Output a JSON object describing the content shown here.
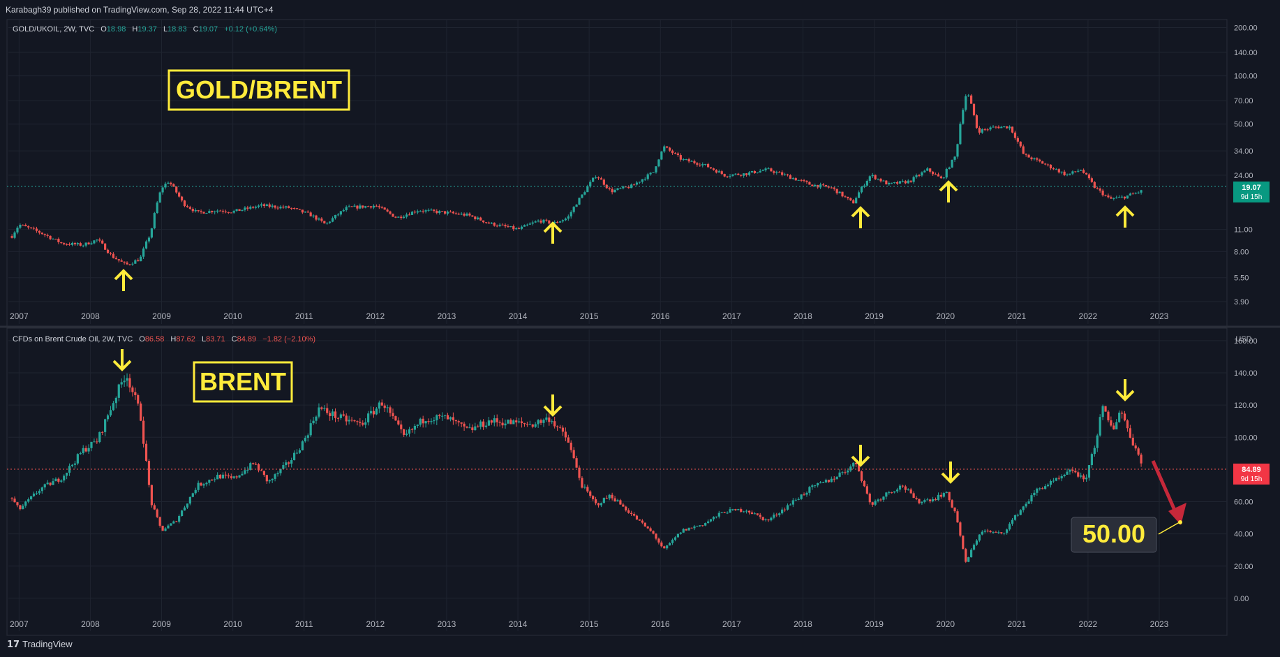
{
  "header": {
    "published": "Karabagh39 published on TradingView.com, Sep 28, 2022 11:44 UTC+4"
  },
  "footer": {
    "logo_glyph": "17",
    "brand": "TradingView"
  },
  "colors": {
    "up": "#26a69a",
    "down": "#ef5350",
    "background": "#131722",
    "grid": "#1f2430",
    "annotation": "#ffeb3b",
    "arrow_red": "#c6283a"
  },
  "top_panel": {
    "legend": {
      "symbol": "GOLD/UKOIL, 2W, TVC",
      "o_label": "O",
      "o": "18.98",
      "h_label": "H",
      "h": "19.37",
      "l_label": "L",
      "l": "18.83",
      "c_label": "C",
      "c": "19.07",
      "change": "+0.12 (+0.64%)"
    },
    "title_box": "GOLD/BRENT",
    "price_badge": {
      "value": "19.07",
      "countdown": "9d 15h"
    },
    "y_ticks": [
      "200.00",
      "140.00",
      "100.00",
      "70.00",
      "50.00",
      "34.00",
      "24.00",
      "11.00",
      "8.00",
      "5.50",
      "3.90"
    ],
    "x_ticks": [
      "2007",
      "2008",
      "2009",
      "2010",
      "2011",
      "2012",
      "2013",
      "2014",
      "2015",
      "2016",
      "2017",
      "2018",
      "2019",
      "2020",
      "2021",
      "2022",
      "2023"
    ],
    "arrows": [
      "up",
      "up",
      "up",
      "up",
      "up"
    ]
  },
  "bottom_panel": {
    "legend": {
      "symbol": "CFDs on Brent Crude Oil, 2W, TVC",
      "o_label": "O",
      "o": "86.58",
      "h_label": "H",
      "h": "87.62",
      "l_label": "L",
      "l": "83.71",
      "c_label": "C",
      "c": "84.89",
      "change": "−1.82 (−2.10%)"
    },
    "title_box": "BRENT",
    "currency": "USD",
    "price_badge": {
      "value": "84.89",
      "countdown": "9d 15h"
    },
    "target_label": "50.00",
    "y_ticks": [
      "160.00",
      "140.00",
      "120.00",
      "100.00",
      "60.00",
      "40.00",
      "20.00",
      "0.00"
    ],
    "x_ticks": [
      "2007",
      "2008",
      "2009",
      "2010",
      "2011",
      "2012",
      "2013",
      "2014",
      "2015",
      "2016",
      "2017",
      "2018",
      "2019",
      "2020",
      "2021",
      "2022",
      "2023"
    ],
    "arrows": [
      "down",
      "down",
      "down",
      "down",
      "down"
    ]
  },
  "chart_data": [
    {
      "type": "candlestick",
      "title": "GOLD/UKOIL, 2W, TVC",
      "scale": "log",
      "ylim": [
        3.6,
        220
      ],
      "last_close": 19.07,
      "points": [
        [
          2006.9,
          10.0
        ],
        [
          2007.0,
          11.8
        ],
        [
          2007.3,
          10.5
        ],
        [
          2007.6,
          9.0
        ],
        [
          2007.9,
          8.8
        ],
        [
          2008.1,
          9.5
        ],
        [
          2008.3,
          7.5
        ],
        [
          2008.5,
          6.6
        ],
        [
          2008.7,
          7.2
        ],
        [
          2008.85,
          10.5
        ],
        [
          2009.0,
          20.0
        ],
        [
          2009.1,
          22.0
        ],
        [
          2009.3,
          16.0
        ],
        [
          2009.5,
          14.0
        ],
        [
          2009.8,
          14.5
        ],
        [
          2010.0,
          14.2
        ],
        [
          2010.4,
          15.5
        ],
        [
          2010.8,
          15.0
        ],
        [
          2011.1,
          13.5
        ],
        [
          2011.3,
          11.8
        ],
        [
          2011.6,
          15.0
        ],
        [
          2012.0,
          15.5
        ],
        [
          2012.3,
          13.0
        ],
        [
          2012.6,
          14.5
        ],
        [
          2013.0,
          14.0
        ],
        [
          2013.3,
          13.5
        ],
        [
          2013.6,
          12.0
        ],
        [
          2014.0,
          11.0
        ],
        [
          2014.3,
          12.5
        ],
        [
          2014.5,
          12.0
        ],
        [
          2014.7,
          13.0
        ],
        [
          2014.9,
          18.0
        ],
        [
          2015.1,
          24.0
        ],
        [
          2015.3,
          19.0
        ],
        [
          2015.6,
          20.5
        ],
        [
          2015.9,
          25.0
        ],
        [
          2016.05,
          36.0
        ],
        [
          2016.3,
          30.0
        ],
        [
          2016.6,
          28.0
        ],
        [
          2016.9,
          24.0
        ],
        [
          2017.2,
          24.5
        ],
        [
          2017.5,
          26.0
        ],
        [
          2017.8,
          23.5
        ],
        [
          2018.1,
          21.0
        ],
        [
          2018.4,
          20.0
        ],
        [
          2018.7,
          16.0
        ],
        [
          2018.95,
          24.0
        ],
        [
          2019.2,
          21.0
        ],
        [
          2019.5,
          22.0
        ],
        [
          2019.75,
          26.0
        ],
        [
          2019.95,
          22.5
        ],
        [
          2020.15,
          32.0
        ],
        [
          2020.3,
          80.0
        ],
        [
          2020.45,
          45.0
        ],
        [
          2020.7,
          48.0
        ],
        [
          2020.9,
          48.0
        ],
        [
          2021.1,
          32.0
        ],
        [
          2021.4,
          28.0
        ],
        [
          2021.7,
          24.0
        ],
        [
          2021.9,
          26.0
        ],
        [
          2022.1,
          20.0
        ],
        [
          2022.3,
          17.0
        ],
        [
          2022.5,
          17.5
        ],
        [
          2022.75,
          19.07
        ]
      ]
    },
    {
      "type": "candlestick",
      "title": "CFDs on Brent Crude Oil, 2W, TVC",
      "scale": "linear",
      "ylim": [
        -10,
        166
      ],
      "y_unit": "USD",
      "last_close": 84.89,
      "target": 50.0,
      "points": [
        [
          2006.9,
          62
        ],
        [
          2007.0,
          55
        ],
        [
          2007.3,
          68
        ],
        [
          2007.6,
          75
        ],
        [
          2007.9,
          92
        ],
        [
          2008.1,
          98
        ],
        [
          2008.35,
          125
        ],
        [
          2008.5,
          140
        ],
        [
          2008.7,
          115
        ],
        [
          2008.85,
          60
        ],
        [
          2009.0,
          42
        ],
        [
          2009.2,
          48
        ],
        [
          2009.5,
          70
        ],
        [
          2009.8,
          76
        ],
        [
          2010.0,
          74
        ],
        [
          2010.3,
          84
        ],
        [
          2010.5,
          72
        ],
        [
          2010.8,
          85
        ],
        [
          2011.0,
          98
        ],
        [
          2011.2,
          118
        ],
        [
          2011.5,
          112
        ],
        [
          2011.8,
          108
        ],
        [
          2012.1,
          122
        ],
        [
          2012.4,
          100
        ],
        [
          2012.7,
          112
        ],
        [
          2013.0,
          112
        ],
        [
          2013.3,
          104
        ],
        [
          2013.6,
          110
        ],
        [
          2013.9,
          109
        ],
        [
          2014.2,
          108
        ],
        [
          2014.45,
          112
        ],
        [
          2014.7,
          98
        ],
        [
          2014.9,
          70
        ],
        [
          2015.1,
          58
        ],
        [
          2015.3,
          64
        ],
        [
          2015.6,
          52
        ],
        [
          2015.9,
          40
        ],
        [
          2016.05,
          30
        ],
        [
          2016.3,
          42
        ],
        [
          2016.6,
          46
        ],
        [
          2016.9,
          54
        ],
        [
          2017.2,
          55
        ],
        [
          2017.5,
          48
        ],
        [
          2017.8,
          58
        ],
        [
          2018.1,
          68
        ],
        [
          2018.4,
          74
        ],
        [
          2018.75,
          84
        ],
        [
          2018.95,
          58
        ],
        [
          2019.2,
          66
        ],
        [
          2019.4,
          70
        ],
        [
          2019.6,
          60
        ],
        [
          2019.85,
          62
        ],
        [
          2020.0,
          66
        ],
        [
          2020.15,
          52
        ],
        [
          2020.28,
          22
        ],
        [
          2020.5,
          42
        ],
        [
          2020.8,
          40
        ],
        [
          2021.0,
          52
        ],
        [
          2021.3,
          68
        ],
        [
          2021.6,
          74
        ],
        [
          2021.8,
          80
        ],
        [
          2021.95,
          72
        ],
        [
          2022.1,
          96
        ],
        [
          2022.2,
          118
        ],
        [
          2022.35,
          104
        ],
        [
          2022.45,
          118
        ],
        [
          2022.6,
          100
        ],
        [
          2022.75,
          84.89
        ]
      ]
    }
  ]
}
